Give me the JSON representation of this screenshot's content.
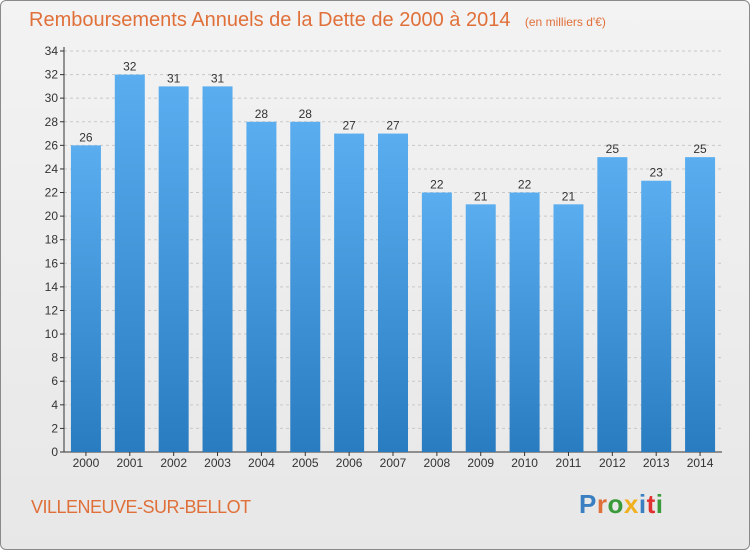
{
  "title": "Remboursements Annuels de la Dette de 2000 à 2014",
  "unit_note": "(en milliers d'€)",
  "commune": "VILLENEUVE-SUR-BELLOT",
  "logo": {
    "text": "Proxiti",
    "letter_colors": [
      "#3a7fc1",
      "#e0703a",
      "#3a9a3a",
      "#f0b020",
      "#3a7fc1",
      "#e03030",
      "#3a9a3a"
    ]
  },
  "colors": {
    "bar_top": "#5aaef0",
    "bar_bottom": "#2a7cc0",
    "title": "#e0703a",
    "grid": "#c8c8c8",
    "axis": "#333333"
  },
  "chart_data": {
    "type": "bar",
    "categories": [
      "2000",
      "2001",
      "2002",
      "2003",
      "2004",
      "2005",
      "2006",
      "2007",
      "2008",
      "2009",
      "2010",
      "2011",
      "2012",
      "2013",
      "2014"
    ],
    "values": [
      26,
      32,
      31,
      31,
      28,
      28,
      27,
      27,
      22,
      21,
      22,
      21,
      25,
      23,
      25
    ],
    "ylim": [
      0,
      34
    ],
    "yticks": [
      0,
      2,
      4,
      6,
      8,
      10,
      12,
      14,
      16,
      18,
      20,
      22,
      24,
      26,
      28,
      30,
      32,
      34
    ],
    "grid": true,
    "data_labels": true
  }
}
